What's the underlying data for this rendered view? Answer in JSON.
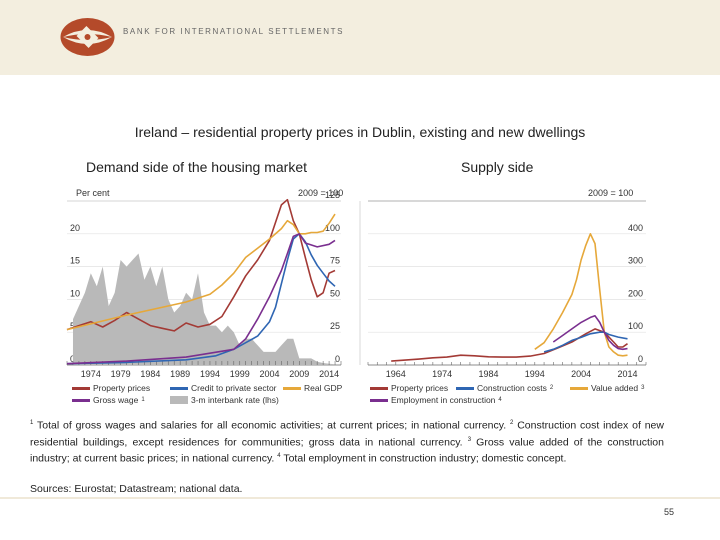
{
  "header": {
    "bank_name": "BANK FOR INTERNATIONAL SETTLEMENTS"
  },
  "title": "Ireland – residential property prices in Dublin, existing and new dwellings",
  "colors": {
    "property": "#a33a35",
    "credit": "#2f66b3",
    "gdp": "#e6a83a",
    "wage": "#7a2f8f",
    "interbank": "#b9b9b9"
  },
  "chart_data": [
    {
      "type": "line",
      "subtitle": "Demand side of the housing market",
      "left_unit": "Per cent",
      "right_unit": "2009 = 100",
      "x_tick_labels": [
        "1974",
        "1979",
        "1984",
        "1989",
        "1994",
        "1999",
        "2004",
        "2009",
        "2014"
      ],
      "x_range": [
        1970,
        2016
      ],
      "left_axis": {
        "range": [
          0,
          25
        ],
        "ticks": [
          0,
          5,
          10,
          15,
          20
        ]
      },
      "right_axis": {
        "range": [
          0,
          125
        ],
        "ticks": [
          0,
          25,
          50,
          75,
          100,
          125
        ]
      },
      "area_series": {
        "name": "3-m interbank rate (lhs)",
        "x": [
          1971,
          1973,
          1974,
          1975,
          1976,
          1977,
          1978,
          1979,
          1980,
          1981,
          1982,
          1983,
          1984,
          1985,
          1986,
          1987,
          1988,
          1989,
          1990,
          1991,
          1992,
          1993,
          1994,
          1995,
          1996,
          1997,
          1998,
          1999,
          2000,
          2001,
          2002,
          2003,
          2004,
          2005,
          2006,
          2007,
          2008,
          2009,
          2010,
          2011,
          2012,
          2013,
          2014,
          2015
        ],
        "values": [
          7,
          11,
          14,
          12,
          15,
          9,
          11,
          16,
          15,
          16,
          17,
          13,
          15,
          12,
          15,
          10,
          8,
          9,
          11,
          10,
          14,
          8,
          6,
          6,
          5,
          6,
          5,
          3,
          4,
          4,
          3,
          2,
          2,
          2,
          3,
          4,
          4,
          1,
          1,
          1,
          0.5,
          0.3,
          0.2,
          0.1
        ]
      },
      "series": [
        {
          "name": "Property prices",
          "axis": "right",
          "x": [
            1970,
            1972,
            1974,
            1976,
            1978,
            1980,
            1982,
            1984,
            1986,
            1988,
            1990,
            1992,
            1994,
            1996,
            1998,
            2000,
            2002,
            2004,
            2006,
            2007,
            2008,
            2009,
            2010,
            2011,
            2012,
            2013,
            2014,
            2015
          ],
          "values": [
            27,
            30,
            33,
            29,
            34,
            40,
            35,
            30,
            28,
            26,
            32,
            29,
            31,
            37,
            52,
            68,
            80,
            95,
            122,
            126,
            110,
            100,
            82,
            65,
            52,
            55,
            70,
            72
          ]
        },
        {
          "name": "Credit to private sector",
          "axis": "right",
          "x": [
            1970,
            1980,
            1990,
            1995,
            1998,
            2000,
            2002,
            2004,
            2005,
            2006,
            2007,
            2008,
            2009,
            2010,
            2011,
            2012,
            2013,
            2014,
            2015
          ],
          "values": [
            1,
            2,
            4,
            7,
            12,
            17,
            22,
            33,
            44,
            62,
            80,
            96,
            100,
            94,
            84,
            76,
            70,
            64,
            60
          ]
        },
        {
          "name": "Real GDP",
          "axis": "right",
          "x": [
            1970,
            1980,
            1990,
            1994,
            1996,
            1998,
            2000,
            2002,
            2004,
            2006,
            2007,
            2008,
            2009,
            2010,
            2011,
            2012,
            2013,
            2014,
            2015
          ],
          "values": [
            27,
            38,
            48,
            54,
            61,
            70,
            82,
            89,
            96,
            104,
            110,
            107,
            100,
            100,
            101,
            101,
            102,
            108,
            115
          ]
        },
        {
          "name": "Gross wage",
          "axis": "right",
          "x": [
            1970,
            1980,
            1990,
            1998,
            2000,
            2002,
            2004,
            2006,
            2007,
            2008,
            2009,
            2010,
            2012,
            2014,
            2015
          ],
          "values": [
            1,
            3,
            6,
            12,
            20,
            35,
            52,
            72,
            85,
            98,
            100,
            93,
            90,
            92,
            95
          ]
        }
      ]
    },
    {
      "type": "line",
      "subtitle": "Supply side",
      "right_unit": "2009 = 100",
      "x_tick_labels": [
        "1964",
        "1974",
        "1984",
        "1994",
        "2004",
        "2014"
      ],
      "x_range": [
        1958,
        2018
      ],
      "right_axis": {
        "range": [
          0,
          500
        ],
        "ticks": [
          0,
          100,
          200,
          300,
          400
        ]
      },
      "series": [
        {
          "name": "Property prices",
          "axis": "right",
          "x": [
            1963,
            1966,
            1969,
            1972,
            1975,
            1978,
            1981,
            1984,
            1987,
            1990,
            1993,
            1996,
            1999,
            2002,
            2005,
            2007,
            2009,
            2011,
            2012,
            2013,
            2014
          ],
          "values": [
            12,
            15,
            18,
            22,
            24,
            30,
            28,
            25,
            24,
            24,
            27,
            35,
            52,
            70,
            95,
            110,
            100,
            70,
            55,
            55,
            65
          ]
        },
        {
          "name": "Construction costs",
          "axis": "right",
          "x": [
            1996,
            1998,
            2000,
            2002,
            2004,
            2006,
            2008,
            2009,
            2010,
            2012,
            2014
          ],
          "values": [
            40,
            48,
            60,
            75,
            84,
            95,
            100,
            100,
            93,
            85,
            80
          ]
        },
        {
          "name": "Value added",
          "axis": "right",
          "x": [
            1994,
            1996,
            1998,
            2000,
            2002,
            2003,
            2004,
            2005,
            2006,
            2007,
            2008,
            2009,
            2010,
            2011,
            2012,
            2013,
            2014
          ],
          "values": [
            48,
            68,
            110,
            160,
            215,
            260,
            320,
            365,
            400,
            370,
            230,
            100,
            55,
            40,
            30,
            28,
            30
          ]
        },
        {
          "name": "Employment in construction",
          "axis": "right",
          "x": [
            1998,
            2000,
            2002,
            2004,
            2006,
            2007,
            2008,
            2009,
            2010,
            2011,
            2012,
            2013,
            2014
          ],
          "values": [
            70,
            90,
            110,
            130,
            145,
            150,
            130,
            100,
            75,
            60,
            50,
            48,
            50
          ]
        }
      ]
    }
  ],
  "legend_left": [
    {
      "label": "Property prices",
      "key": "property",
      "sup": ""
    },
    {
      "label": "Credit to private sector",
      "key": "credit",
      "sup": ""
    },
    {
      "label": "Real GDP",
      "key": "gdp",
      "sup": ""
    },
    {
      "label": "Gross wage",
      "key": "wage",
      "sup": "1"
    },
    {
      "label": "3-m interbank rate (lhs)",
      "key": "interbank",
      "sup": ""
    }
  ],
  "legend_right": [
    {
      "label": "Property prices",
      "key": "property",
      "sup": ""
    },
    {
      "label": "Construction costs",
      "key": "credit",
      "sup": "2"
    },
    {
      "label": "Value added",
      "key": "gdp",
      "sup": "3"
    },
    {
      "label": "Employment in construction",
      "key": "wage",
      "sup": "4"
    }
  ],
  "footnotes": {
    "n1_mark": "1",
    "n1": "Total of gross wages and salaries for all economic activities; at current prices; in national currency.",
    "n2_mark": "2",
    "n2": "Construction cost index of new residential buildings, except residences for communities; gross data in national currency.",
    "n3_mark": "3",
    "n3": "Gross value added of the construction industry; at current basic prices; in national currency.",
    "n4_mark": "4",
    "n4": "Total employment in construction industry; domestic concept."
  },
  "sources": "Sources: Eurostat; Datastream; national data.",
  "page_number": "55"
}
